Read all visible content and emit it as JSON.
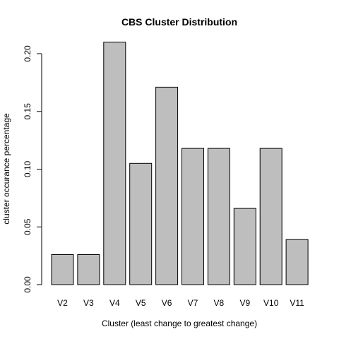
{
  "chart_data": {
    "type": "bar",
    "title": "CBS Cluster Distribution",
    "xlabel": "Cluster (least change to greatest change)",
    "ylabel": "cluster occurance percentage",
    "categories": [
      "V2",
      "V3",
      "V4",
      "V5",
      "V6",
      "V7",
      "V8",
      "V9",
      "V10",
      "V11"
    ],
    "values": [
      0.026,
      0.026,
      0.21,
      0.105,
      0.171,
      0.118,
      0.118,
      0.066,
      0.118,
      0.039
    ],
    "ylim": [
      0,
      0.2
    ],
    "yticks": [
      0.0,
      0.05,
      0.1,
      0.15,
      0.2
    ],
    "ytick_labels": [
      "0.00",
      "0.05",
      "0.10",
      "0.15",
      "0.20"
    ],
    "grid": false,
    "legend": "none",
    "bar_color": "#bebebe",
    "edge_color": "#000000"
  }
}
